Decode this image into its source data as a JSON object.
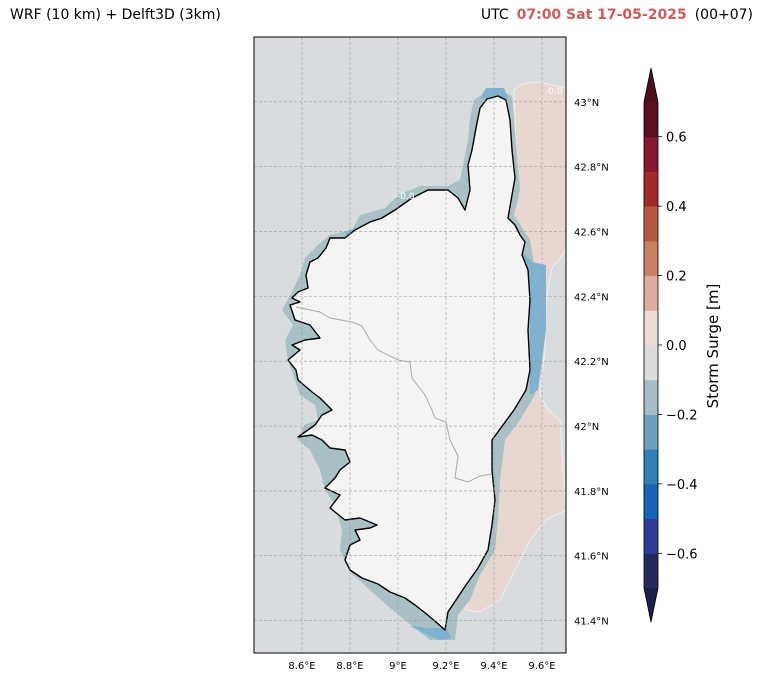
{
  "header": {
    "left_title": "WRF (10 km) + Delft3D (3km)",
    "utc_label": "UTC",
    "datetime": "07:00 Sat 17-05-2025",
    "offset": "(00+07)"
  },
  "map": {
    "region": "Corsica",
    "lon_range": [
      8.4,
      9.7
    ],
    "lat_range": [
      41.3,
      43.2
    ],
    "lon_ticks": [
      {
        "value": 8.6,
        "label": "8.6°E"
      },
      {
        "value": 8.8,
        "label": "8.8°E"
      },
      {
        "value": 9.0,
        "label": "9°E"
      },
      {
        "value": 9.2,
        "label": "9.2°E"
      },
      {
        "value": 9.4,
        "label": "9.4°E"
      },
      {
        "value": 9.6,
        "label": "9.6°E"
      }
    ],
    "lat_ticks": [
      {
        "value": 43.0,
        "label": "43°N"
      },
      {
        "value": 42.8,
        "label": "42.8°N"
      },
      {
        "value": 42.6,
        "label": "42.6°N"
      },
      {
        "value": 42.4,
        "label": "42.4°N"
      },
      {
        "value": 42.2,
        "label": "42.2°N"
      },
      {
        "value": 42.0,
        "label": "42°N"
      },
      {
        "value": 41.8,
        "label": "41.8°N"
      },
      {
        "value": 41.6,
        "label": "41.6°N"
      },
      {
        "value": 41.4,
        "label": "41.4°N"
      }
    ],
    "contour_labels": [
      "-0.0",
      "-0.0"
    ],
    "colors": {
      "sea": "#d8dcdf",
      "land": "#f4f4f4",
      "coast": "#000000",
      "grid": "#9a9a9a",
      "border": "#aaaaaa",
      "positive_surge": "#e8d6d1",
      "negative_surge_blue": "#7fb1d0",
      "negative_surge_gray": "#a9c1c6"
    }
  },
  "colorbar": {
    "title": "Storm Surge [m]",
    "ticks": [
      {
        "value": 0.6,
        "label": "0.6"
      },
      {
        "value": 0.4,
        "label": "0.4"
      },
      {
        "value": 0.2,
        "label": "0.2"
      },
      {
        "value": 0.0,
        "label": "0.0"
      },
      {
        "value": -0.2,
        "label": "−0.2"
      },
      {
        "value": -0.4,
        "label": "−0.4"
      },
      {
        "value": -0.6,
        "label": "−0.6"
      }
    ],
    "range": [
      -0.7,
      0.7
    ],
    "extend": "both",
    "colors": [
      "#242a5c",
      "#2e3c9a",
      "#1464b8",
      "#2f7fb8",
      "#6aa2bd",
      "#a7bec9",
      "#dcdcdc",
      "#ecdcd8",
      "#ddad9e",
      "#cd7f66",
      "#b75a40",
      "#a32a28",
      "#8a1630",
      "#5a1020"
    ],
    "upper_extend_color": "#4a0f1a",
    "lower_extend_color": "#1c1f48"
  }
}
